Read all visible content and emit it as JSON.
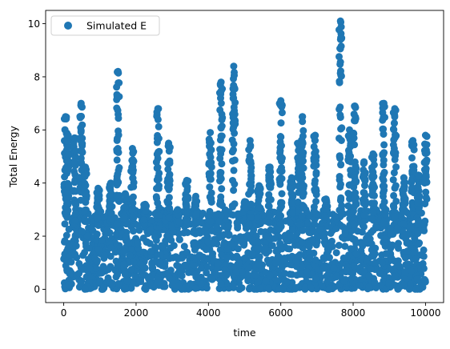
{
  "chart_data": {
    "type": "scatter",
    "title": "",
    "xlabel": "time",
    "ylabel": "Total Energy",
    "xlim": [
      -500,
      10500
    ],
    "ylim": [
      -0.5,
      10.5
    ],
    "xticks": [
      0,
      2000,
      4000,
      6000,
      8000,
      10000
    ],
    "yticks": [
      0,
      2,
      4,
      6,
      8,
      10
    ],
    "grid": false,
    "legend_position": "upper-left",
    "series": [
      {
        "name": "Simulated E",
        "color": "#1f77b4",
        "marker": "circle",
        "x_range": [
          0,
          10000
        ],
        "dense_band": [
          0.0,
          3.0
        ],
        "peaks": [
          [
            50,
            6.5
          ],
          [
            120,
            5.8
          ],
          [
            300,
            5.7
          ],
          [
            480,
            7.0
          ],
          [
            600,
            4.6
          ],
          [
            950,
            3.8
          ],
          [
            1300,
            4.0
          ],
          [
            1500,
            8.2
          ],
          [
            1700,
            3.6
          ],
          [
            1900,
            5.3
          ],
          [
            2250,
            3.2
          ],
          [
            2600,
            6.8
          ],
          [
            2900,
            5.5
          ],
          [
            3150,
            3.0
          ],
          [
            3400,
            4.1
          ],
          [
            3650,
            3.5
          ],
          [
            4050,
            5.9
          ],
          [
            4350,
            7.8
          ],
          [
            4700,
            8.4
          ],
          [
            5000,
            3.3
          ],
          [
            5150,
            5.6
          ],
          [
            5400,
            3.9
          ],
          [
            5700,
            4.6
          ],
          [
            6000,
            7.1
          ],
          [
            6300,
            4.2
          ],
          [
            6500,
            5.5
          ],
          [
            6600,
            6.5
          ],
          [
            6950,
            5.8
          ],
          [
            7250,
            3.4
          ],
          [
            7650,
            10.1
          ],
          [
            7900,
            6.0
          ],
          [
            8050,
            6.9
          ],
          [
            8300,
            4.8
          ],
          [
            8550,
            5.1
          ],
          [
            8850,
            7.0
          ],
          [
            9150,
            6.8
          ],
          [
            9400,
            4.2
          ],
          [
            9650,
            5.6
          ],
          [
            9800,
            4.3
          ],
          [
            10000,
            5.8
          ]
        ]
      }
    ]
  }
}
